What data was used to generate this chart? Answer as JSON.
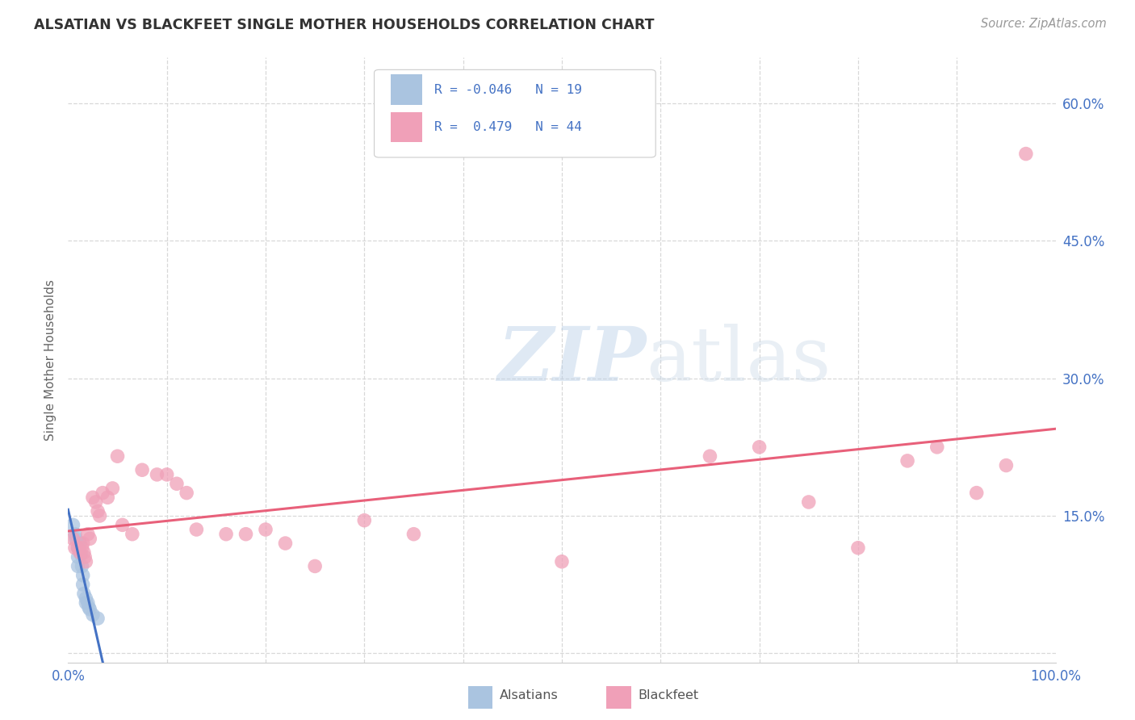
{
  "title": "ALSATIAN VS BLACKFEET SINGLE MOTHER HOUSEHOLDS CORRELATION CHART",
  "source": "Source: ZipAtlas.com",
  "ylabel": "Single Mother Households",
  "xlim": [
    0.0,
    1.0
  ],
  "ylim": [
    -0.01,
    0.65
  ],
  "xticks": [
    0.0,
    0.1,
    0.2,
    0.3,
    0.4,
    0.5,
    0.6,
    0.7,
    0.8,
    0.9,
    1.0
  ],
  "xticklabels": [
    "0.0%",
    "",
    "",
    "",
    "",
    "",
    "",
    "",
    "",
    "",
    "100.0%"
  ],
  "yticks": [
    0.0,
    0.15,
    0.3,
    0.45,
    0.6
  ],
  "yticklabels": [
    "",
    "15.0%",
    "30.0%",
    "45.0%",
    "60.0%"
  ],
  "alsatian_color": "#aac4e0",
  "blackfeet_color": "#f0a0b8",
  "alsatian_line_color": "#4472c4",
  "blackfeet_line_color": "#e8607a",
  "watermark_zip": "ZIP",
  "watermark_atlas": "atlas",
  "background_color": "#ffffff",
  "grid_color": "#d8d8d8",
  "alsatian_x": [
    0.005,
    0.007,
    0.008,
    0.01,
    0.01,
    0.01,
    0.012,
    0.013,
    0.014,
    0.015,
    0.015,
    0.016,
    0.018,
    0.018,
    0.02,
    0.021,
    0.022,
    0.025,
    0.03
  ],
  "alsatian_y": [
    0.14,
    0.13,
    0.125,
    0.115,
    0.105,
    0.095,
    0.12,
    0.108,
    0.095,
    0.085,
    0.075,
    0.065,
    0.06,
    0.055,
    0.055,
    0.05,
    0.048,
    0.042,
    0.038
  ],
  "blackfeet_x": [
    0.005,
    0.007,
    0.01,
    0.012,
    0.014,
    0.015,
    0.016,
    0.017,
    0.018,
    0.02,
    0.022,
    0.025,
    0.028,
    0.03,
    0.032,
    0.035,
    0.04,
    0.045,
    0.05,
    0.055,
    0.065,
    0.075,
    0.09,
    0.1,
    0.11,
    0.12,
    0.13,
    0.16,
    0.18,
    0.2,
    0.22,
    0.25,
    0.3,
    0.35,
    0.5,
    0.65,
    0.7,
    0.75,
    0.8,
    0.85,
    0.88,
    0.92,
    0.95,
    0.97
  ],
  "blackfeet_y": [
    0.125,
    0.115,
    0.115,
    0.11,
    0.115,
    0.12,
    0.11,
    0.105,
    0.1,
    0.13,
    0.125,
    0.17,
    0.165,
    0.155,
    0.15,
    0.175,
    0.17,
    0.18,
    0.215,
    0.14,
    0.13,
    0.2,
    0.195,
    0.195,
    0.185,
    0.175,
    0.135,
    0.13,
    0.13,
    0.135,
    0.12,
    0.095,
    0.145,
    0.13,
    0.1,
    0.215,
    0.225,
    0.165,
    0.115,
    0.21,
    0.225,
    0.175,
    0.205,
    0.545
  ]
}
